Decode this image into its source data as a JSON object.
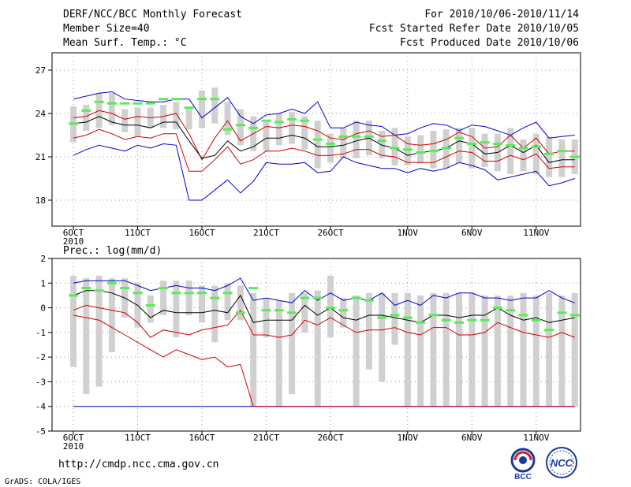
{
  "header": {
    "title": "DERF/NCC/BCC Monthly Forecast",
    "member_size": "Member Size=40",
    "variable": "Mean Surf. Temp.: °C",
    "forecast_period": "For 2010/10/06-2010/11/14",
    "started_refer": "Fcst Started Refer Date 2010/10/05",
    "produced": "Fcst Produced Date 2010/10/06"
  },
  "footer": {
    "url": "http://cmdp.ncc.cma.gov.cn",
    "grads": "GrADS: COLA/IGES",
    "logo_bcc": "BCC",
    "logo_ncc": "NCC"
  },
  "colors": {
    "box": "#d0d0d0",
    "median": "#55ee55",
    "mean": "#000000",
    "spread": "#cc0000",
    "extremes": "#0000cc",
    "grid": "#999999"
  },
  "chart_data": [
    {
      "type": "box",
      "title": "Mean Surf. Temp.: °C",
      "ylabel": "°C",
      "ylim": [
        16.2,
        28.2
      ],
      "yticks": [
        18,
        21,
        24,
        27
      ],
      "x_tick_labels": [
        "6OCT",
        "11OCT",
        "16OCT",
        "21OCT",
        "26OCT",
        "1NOV",
        "6NOV",
        "11NOV"
      ],
      "x_tick_days": [
        1,
        6,
        11,
        16,
        21,
        27,
        32,
        37
      ],
      "year_label": "2010",
      "days": 40,
      "series": {
        "max": [
          25.0,
          25.2,
          25.4,
          25.5,
          25.0,
          24.9,
          24.8,
          24.8,
          25.0,
          25.0,
          23.7,
          24.4,
          25.1,
          23.8,
          23.3,
          23.9,
          24.0,
          24.3,
          24.0,
          24.8,
          23.0,
          23.0,
          23.4,
          23.2,
          23.1,
          22.5,
          22.6,
          23.0,
          23.3,
          23.2,
          22.8,
          23.2,
          23.1,
          22.8,
          22.5,
          23.0,
          23.4,
          22.3,
          22.4,
          22.5
        ],
        "p_hi": [
          23.7,
          23.8,
          24.2,
          24.0,
          23.6,
          23.8,
          23.7,
          23.8,
          24.0,
          22.6,
          20.8,
          22.3,
          23.5,
          22.1,
          22.6,
          23.1,
          23.0,
          23.2,
          23.1,
          22.8,
          22.3,
          22.2,
          22.6,
          22.8,
          22.4,
          22.5,
          21.9,
          21.8,
          21.9,
          22.2,
          22.7,
          22.4,
          21.6,
          21.7,
          22.5,
          21.6,
          22.3,
          21.2,
          21.4,
          21.4
        ],
        "mean": [
          23.3,
          23.4,
          23.8,
          23.4,
          23.2,
          23.2,
          23.0,
          23.4,
          23.4,
          22.1,
          20.9,
          21.1,
          22.1,
          21.4,
          21.7,
          22.3,
          22.3,
          22.5,
          22.3,
          21.7,
          21.7,
          21.8,
          22.1,
          22.3,
          21.8,
          21.6,
          21.1,
          21.3,
          21.4,
          21.6,
          22.1,
          21.9,
          21.2,
          21.3,
          21.8,
          21.3,
          21.8,
          20.6,
          20.8,
          20.8
        ],
        "p_lo": [
          22.3,
          22.5,
          22.9,
          22.6,
          22.2,
          22.4,
          22.3,
          22.6,
          22.6,
          20.0,
          20.0,
          20.8,
          21.7,
          20.5,
          20.8,
          21.4,
          21.4,
          21.6,
          21.4,
          21.1,
          21.1,
          21.2,
          21.5,
          21.5,
          21.1,
          21.0,
          20.6,
          20.6,
          20.6,
          21.0,
          21.4,
          21.3,
          20.7,
          20.7,
          21.1,
          20.8,
          21.2,
          20.2,
          20.3,
          20.3
        ],
        "min": [
          21.1,
          21.5,
          21.8,
          21.6,
          21.4,
          21.8,
          21.6,
          21.9,
          21.8,
          18.0,
          18.0,
          18.7,
          19.4,
          18.5,
          19.3,
          20.6,
          20.5,
          20.5,
          20.6,
          19.9,
          20.0,
          21.0,
          20.6,
          20.4,
          20.2,
          20.2,
          19.9,
          20.2,
          20.0,
          20.2,
          20.6,
          20.4,
          20.1,
          19.4,
          19.6,
          19.8,
          20.0,
          19.0,
          19.2,
          19.5
        ],
        "median": [
          23.3,
          24.2,
          24.8,
          24.7,
          24.7,
          24.7,
          24.7,
          25.0,
          25.0,
          24.4,
          25.0,
          25.0,
          22.9,
          23.2,
          23.0,
          23.5,
          23.4,
          23.6,
          23.5,
          22.2,
          21.9,
          22.4,
          22.4,
          22.4,
          22.1,
          21.6,
          21.5,
          21.3,
          21.4,
          21.6,
          22.3,
          21.9,
          22.0,
          21.9,
          21.8,
          21.6,
          21.7,
          21.2,
          21.4,
          21.0
        ],
        "box_hi": [
          24.5,
          24.6,
          25.4,
          25.4,
          24.3,
          24.4,
          24.4,
          24.6,
          24.8,
          24.4,
          25.6,
          25.8,
          24.8,
          24.3,
          23.8,
          23.4,
          24.0,
          24.1,
          23.8,
          23.5,
          22.6,
          23.0,
          23.5,
          23.5,
          22.8,
          23.0,
          22.4,
          22.5,
          22.8,
          22.9,
          23.0,
          23.0,
          22.6,
          22.6,
          23.0,
          22.2,
          22.6,
          22.4,
          22.2,
          22.2
        ],
        "box_lo": [
          22.0,
          22.8,
          23.0,
          23.2,
          22.7,
          22.4,
          23.0,
          23.0,
          22.9,
          22.9,
          23.0,
          23.3,
          22.5,
          21.8,
          21.4,
          21.4,
          21.8,
          21.9,
          21.5,
          20.2,
          20.6,
          20.9,
          20.9,
          21.1,
          20.9,
          20.4,
          20.4,
          20.6,
          20.2,
          20.2,
          20.6,
          20.2,
          20.3,
          20.0,
          19.8,
          20.0,
          19.8,
          19.6,
          19.6,
          19.8
        ]
      }
    },
    {
      "type": "box",
      "title": "Prec.: log(mm/d)",
      "ylabel": "log(mm/d)",
      "ylim": [
        -5,
        2
      ],
      "yticks": [
        -5,
        -4,
        -3,
        -2,
        -1,
        0,
        1,
        2
      ],
      "x_tick_labels": [
        "6OCT",
        "11OCT",
        "16OCT",
        "21OCT",
        "26OCT",
        "1NOV",
        "6NOV",
        "11NOV"
      ],
      "x_tick_days": [
        1,
        6,
        11,
        16,
        21,
        27,
        32,
        37
      ],
      "year_label": "2010",
      "days": 40,
      "series": {
        "max": [
          1.0,
          1.1,
          1.1,
          1.1,
          1.1,
          0.9,
          0.7,
          0.8,
          0.9,
          0.8,
          0.8,
          0.7,
          0.9,
          1.2,
          0.3,
          0.4,
          0.3,
          0.2,
          0.7,
          0.3,
          0.6,
          0.3,
          0.4,
          0.3,
          0.6,
          0.1,
          0.3,
          0.1,
          0.5,
          0.4,
          0.6,
          0.6,
          0.4,
          0.4,
          0.3,
          0.4,
          0.4,
          0.7,
          0.4,
          0.2
        ],
        "mean": [
          0.5,
          0.7,
          0.7,
          0.6,
          0.4,
          0.1,
          -0.4,
          -0.1,
          -0.2,
          -0.2,
          -0.2,
          -0.1,
          -0.2,
          0.5,
          -0.6,
          -0.5,
          -0.5,
          -0.5,
          0.1,
          -0.3,
          0.0,
          -0.4,
          -0.5,
          -0.3,
          -0.3,
          -0.4,
          -0.5,
          -0.6,
          -0.3,
          -0.3,
          -0.4,
          -0.3,
          -0.3,
          0.0,
          -0.3,
          -0.5,
          -0.4,
          -0.6,
          -0.5,
          -0.4
        ],
        "p_lo": [
          -0.1,
          0.1,
          0.0,
          -0.1,
          -0.2,
          -0.6,
          -1.2,
          -0.9,
          -1.0,
          -1.1,
          -0.9,
          -0.8,
          -0.7,
          -0.1,
          -1.1,
          -1.1,
          -1.2,
          -1.1,
          -0.5,
          -0.7,
          -0.4,
          -0.7,
          -1.0,
          -0.9,
          -0.9,
          -0.8,
          -1.0,
          -1.1,
          -0.8,
          -0.8,
          -1.1,
          -1.1,
          -1.0,
          -0.6,
          -0.8,
          -1.0,
          -1.1,
          -1.2,
          -1.0,
          -1.2
        ],
        "min": [
          -0.3,
          -0.4,
          -0.5,
          -0.8,
          -1.1,
          -1.4,
          -1.7,
          -2.0,
          -1.7,
          -1.9,
          -2.1,
          -2.0,
          -2.4,
          -2.3,
          -4.0,
          -4.0,
          -4.0,
          -4.0,
          -4.0,
          -4.0,
          -4.0,
          -4.0,
          -4.0,
          -4.0,
          -4.0,
          -4.0,
          -4.0,
          -4.0,
          -4.0,
          -4.0,
          -4.0,
          -4.0,
          -4.0,
          -4.0,
          -4.0,
          -4.0,
          -4.0,
          -4.0,
          -4.0,
          -4.0
        ],
        "floor": [
          -4,
          -4,
          -4,
          -4,
          -4,
          -4,
          -4,
          -4,
          -4,
          -4,
          -4,
          -4,
          -4,
          -4,
          -4,
          -4,
          -4,
          -4,
          -4,
          -4,
          -4,
          -4,
          -4,
          -4,
          -4,
          -4,
          -4,
          -4,
          -4,
          -4,
          -4,
          -4,
          -4,
          -4,
          -4,
          -4,
          -4,
          -4,
          -4,
          -4
        ],
        "median": [
          0.5,
          0.8,
          0.7,
          1.0,
          0.8,
          0.6,
          0.1,
          0.8,
          0.6,
          0.6,
          0.6,
          0.4,
          0.6,
          -0.2,
          0.8,
          -0.1,
          -0.1,
          -0.2,
          0.4,
          0.4,
          0.0,
          -0.1,
          0.4,
          0.3,
          -0.4,
          -0.3,
          -0.4,
          -0.6,
          -0.3,
          -0.5,
          -0.6,
          -0.5,
          -0.5,
          0.0,
          -0.1,
          -0.3,
          -0.5,
          -0.9,
          -0.2,
          -0.3
        ],
        "box_hi": [
          1.3,
          1.2,
          1.3,
          1.2,
          1.2,
          1.0,
          0.5,
          1.1,
          1.1,
          1.1,
          0.9,
          0.9,
          1.0,
          0.9,
          0.6,
          0.4,
          0.3,
          0.6,
          0.6,
          0.7,
          1.3,
          0.4,
          0.5,
          0.6,
          0.6,
          0.6,
          0.6,
          0.5,
          0.6,
          0.6,
          0.6,
          0.6,
          0.5,
          0.5,
          0.5,
          0.6,
          0.5,
          0.6,
          0.5,
          0.6
        ],
        "box_lo": [
          -2.4,
          -3.5,
          -3.2,
          -1.8,
          -0.4,
          -0.8,
          -0.6,
          -0.3,
          -1.2,
          -0.3,
          -0.6,
          -1.4,
          -0.5,
          -0.5,
          -4.0,
          -1.2,
          -4.0,
          -3.5,
          -1.0,
          -4.0,
          -1.2,
          -0.8,
          -4.0,
          -2.5,
          -3.0,
          -1.5,
          -4.0,
          -4.0,
          -4.0,
          -4.0,
          -4.0,
          -4.0,
          -4.0,
          -4.0,
          -4.0,
          -4.0,
          -4.0,
          -4.0,
          -4.0,
          -4.0
        ]
      }
    }
  ]
}
